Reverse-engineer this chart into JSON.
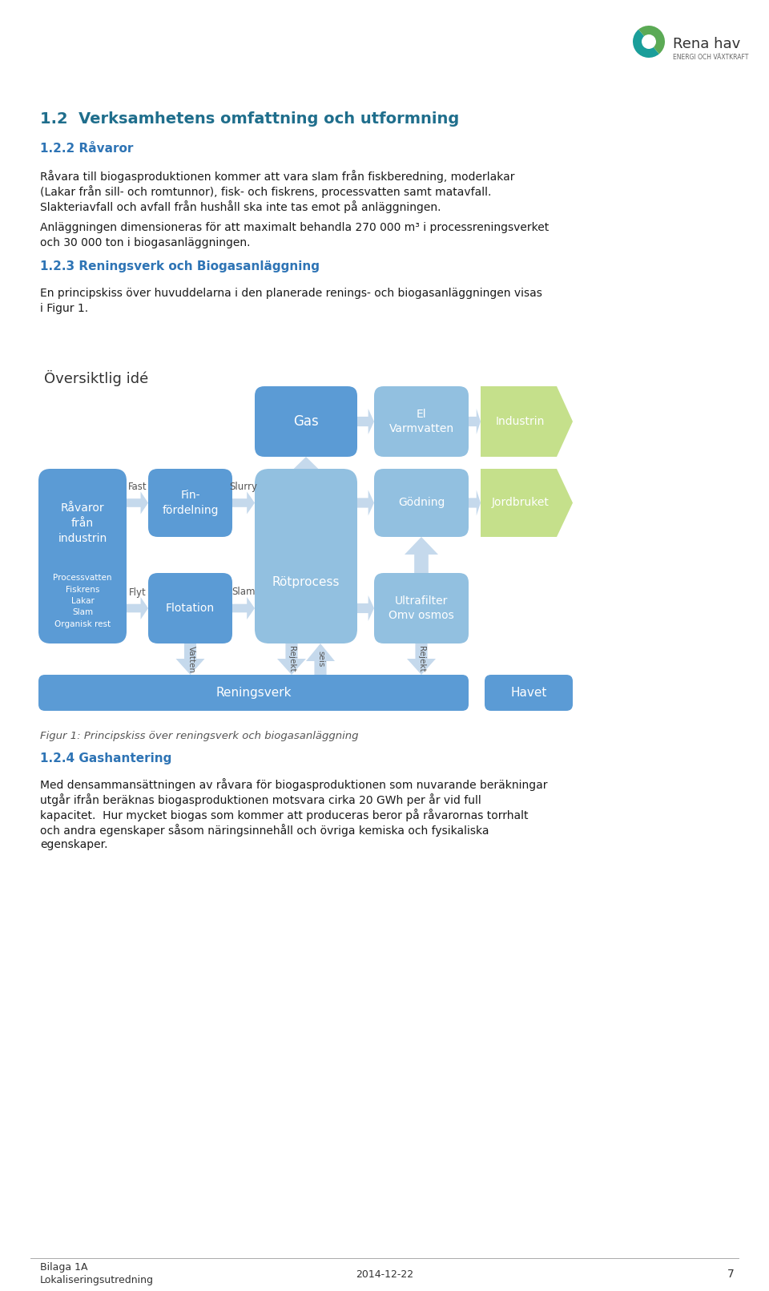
{
  "page_title": "1.2  Verksamhetens omfattning och utformning",
  "section_122_title": "1.2.2 Råvaror",
  "section_122_text_l1": "Råvara till biogasproduktionen kommer att vara slam från fiskberedning, moderlakar",
  "section_122_text_l2": "(Lakar från sill- och romtunnor), fisk- och fiskrens, processvatten samt matavfall.",
  "section_122_text_l3": "Slakteriavfall och avfall från hushåll ska inte tas emot på anläggningen.",
  "section_122_text2_l1": "Anläggningen dimensioneras för att maximalt behandla 270 000 m³ i processreningsverket",
  "section_122_text2_l2": "och 30 000 ton i biogasanläggningen.",
  "section_123_title": "1.2.3 Reningsverk och Biogasanläggning",
  "section_123_text_l1": "En principskiss över huvuddelarna i den planerade renings- och biogasanläggningen visas",
  "section_123_text_l2": "i Figur 1.",
  "figure_caption": "Figur 1: Principskiss över reningsverk och biogasanläggning",
  "section_124_title": "1.2.4 Gashantering",
  "section_124_text_l1": "Med densammansättningen av råvara för biogasproduktionen som nuvarande beräkningar",
  "section_124_text_l2": "utgår ifrån beräknas biogasproduktionen motsvara cirka 20 GWh per år vid full",
  "section_124_text_l3": "kapacitet.  Hur mycket biogas som kommer att produceras beror på råvarornas torrhalt",
  "section_124_text_l4": "och andra egenskaper såsom näringsinnehåll och övriga kemiska och fysikaliska",
  "section_124_text_l5": "egenskaper.",
  "footer_left1": "Bilaga 1A",
  "footer_left2": "Lokaliseringsutredning",
  "footer_center": "2014-12-22",
  "footer_page": "7",
  "title_color": "#1F6E8C",
  "section_title_color": "#2E74B5",
  "body_color": "#1a1a1a",
  "blue_box_color": "#5B9BD5",
  "blue_box_light": "#92C0E0",
  "green_box_color": "#C5E08B",
  "arrow_fill": "#C5D9EC",
  "diagram_label": "Översiktlig idé",
  "box_rawara": "Råvaror\nfrån\nindustrin",
  "box_rawara_sub": "Processvatten\nFiskrens\nLakar\nSlam\nOrganisk rest",
  "box_fin": "Fin-\nfördelning",
  "box_flotation": "Flotation",
  "box_rot": "Rötprocess",
  "box_gas": "Gas",
  "box_el": "El\nVarmvatten",
  "box_industrin": "Industrin",
  "box_godning": "Gödning",
  "box_jordbruket": "Jordbruket",
  "box_ultrafilter": "Ultrafilter\nOmv osmos",
  "box_reningsverk": "Reningsverk",
  "box_havet": "Havet",
  "lbl_fast": "Fast",
  "lbl_slurry": "Slurry",
  "lbl_flyt": "Flyt",
  "lbl_slam": "Slam",
  "lbl_vatten": "Vatten",
  "lbl_rejekt": "Rejekt",
  "lbl_seis": "seis"
}
